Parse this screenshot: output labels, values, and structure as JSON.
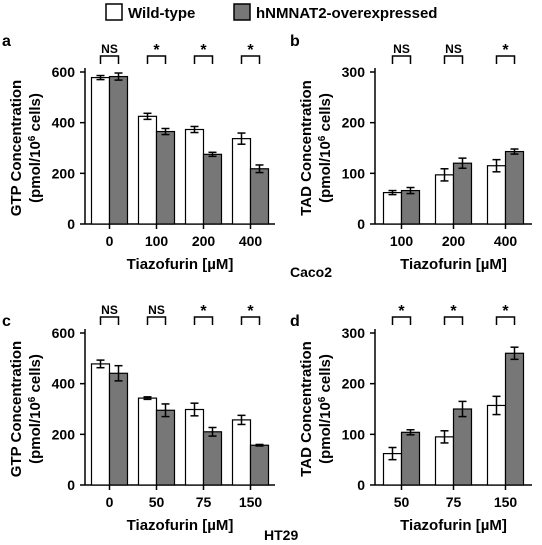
{
  "legend": {
    "items": [
      {
        "label": "Wild-type",
        "color": "#ffffff"
      },
      {
        "label": "hNMNAT2-overexpressed",
        "color": "#777777"
      }
    ]
  },
  "group_labels": {
    "top": "Caco2",
    "bottom": "HT29"
  },
  "chart_data": [
    {
      "panel": "a",
      "type": "bar",
      "xlabel": "Tiazofurin [µM]",
      "ylabel_line1": "GTP Concentration",
      "ylabel_line2_base": "(pmol/10",
      "ylabel_line2_sup": "6",
      "ylabel_line2_end": " cells)",
      "categories": [
        "0",
        "100",
        "200",
        "400"
      ],
      "ylim": [
        0,
        600
      ],
      "yticks": [
        0,
        200,
        400,
        600
      ],
      "series": [
        {
          "name": "Wild-type",
          "values": [
            578,
            425,
            373,
            337
          ],
          "errors": [
            8,
            12,
            12,
            22
          ]
        },
        {
          "name": "hNMNAT2-overexpressed",
          "values": [
            582,
            365,
            275,
            218
          ],
          "errors": [
            14,
            12,
            8,
            15
          ]
        }
      ],
      "significance": [
        "NS",
        "*",
        "*",
        "*"
      ]
    },
    {
      "panel": "b",
      "type": "bar",
      "xlabel": "Tiazofurin [µM]",
      "ylabel_line1": "TAD Concentration",
      "ylabel_line2_base": "(pmol/10",
      "ylabel_line2_sup": "6",
      "ylabel_line2_end": " cells)",
      "categories": [
        "100",
        "200",
        "400"
      ],
      "ylim": [
        0,
        300
      ],
      "yticks": [
        0,
        100,
        200,
        300
      ],
      "series": [
        {
          "name": "Wild-type",
          "values": [
            62,
            97,
            115
          ],
          "errors": [
            4,
            12,
            12
          ]
        },
        {
          "name": "hNMNAT2-overexpressed",
          "values": [
            66,
            120,
            143
          ],
          "errors": [
            6,
            10,
            5
          ]
        }
      ],
      "significance": [
        "NS",
        "NS",
        "*"
      ]
    },
    {
      "panel": "c",
      "type": "bar",
      "xlabel": "Tiazofurin [µM]",
      "ylabel_line1": "GTP Concentration",
      "ylabel_line2_base": "(pmol/10",
      "ylabel_line2_sup": "6",
      "ylabel_line2_end": " cells)",
      "categories": [
        "0",
        "50",
        "75",
        "150"
      ],
      "ylim": [
        0,
        600
      ],
      "yticks": [
        0,
        200,
        400,
        600
      ],
      "series": [
        {
          "name": "Wild-type",
          "values": [
            478,
            343,
            298,
            257
          ],
          "errors": [
            15,
            5,
            25,
            18
          ]
        },
        {
          "name": "hNMNAT2-overexpressed",
          "values": [
            441,
            295,
            210,
            157
          ],
          "errors": [
            30,
            25,
            17,
            3
          ]
        }
      ],
      "significance": [
        "NS",
        "NS",
        "*",
        "*"
      ]
    },
    {
      "panel": "d",
      "type": "bar",
      "xlabel": "Tiazofurin [µM]",
      "ylabel_line1": "TAD Concentration",
      "ylabel_line2_base": "(pmol/10",
      "ylabel_line2_sup": "6",
      "ylabel_line2_end": " cells)",
      "categories": [
        "50",
        "75",
        "150"
      ],
      "ylim": [
        0,
        300
      ],
      "yticks": [
        0,
        100,
        200,
        300
      ],
      "series": [
        {
          "name": "Wild-type",
          "values": [
            62,
            95,
            157
          ],
          "errors": [
            12,
            12,
            18
          ]
        },
        {
          "name": "hNMNAT2-overexpressed",
          "values": [
            104,
            150,
            260
          ],
          "errors": [
            5,
            15,
            12
          ]
        }
      ],
      "significance": [
        "*",
        "*",
        "*"
      ]
    }
  ]
}
